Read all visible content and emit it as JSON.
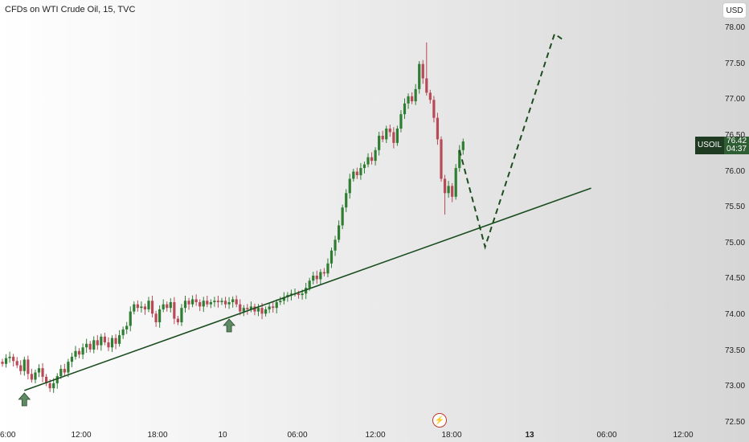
{
  "header": {
    "title": "CFDs on WTI Crude Oil, 15, TVC",
    "currency_button": "USD"
  },
  "price_badge": {
    "symbol": "USOIL",
    "price": "76.42",
    "countdown": "04:37",
    "color": "#2f5e34"
  },
  "colors": {
    "up": "#2e7d32",
    "down": "#b84a58",
    "trendline": "#1b4d1f",
    "projection": "#1b4d1f",
    "arrow": "#5d8a63"
  },
  "icons": {
    "marker": "up-arrow-icon",
    "event": "lightning-icon"
  },
  "chart_data": {
    "type": "candlestick",
    "symbol": "USOIL",
    "y_axis": {
      "ticks": [
        "78.00",
        "77.50",
        "77.00",
        "76.50",
        "76.00",
        "75.50",
        "75.00",
        "74.50",
        "74.00",
        "73.50",
        "73.00",
        "72.50"
      ],
      "range": [
        72.5,
        78.0
      ]
    },
    "x_axis": {
      "ticks": [
        {
          "label": "6:00",
          "bold": false
        },
        {
          "label": "12:00",
          "bold": false
        },
        {
          "label": "18:00",
          "bold": false
        },
        {
          "label": "10",
          "bold": false
        },
        {
          "label": "06:00",
          "bold": false
        },
        {
          "label": "12:00",
          "bold": false
        },
        {
          "label": "18:00",
          "bold": false
        },
        {
          "label": "13",
          "bold": true
        },
        {
          "label": "06:00",
          "bold": false
        },
        {
          "label": "12:00",
          "bold": false
        }
      ]
    },
    "candle_series": {
      "start_close": 73.35,
      "closes": [
        73.32,
        73.4,
        73.42,
        73.36,
        73.3,
        73.22,
        73.38,
        73.18,
        73.1,
        73.2,
        73.26,
        73.14,
        73.05,
        72.98,
        73.05,
        73.15,
        73.25,
        73.2,
        73.35,
        73.42,
        73.5,
        73.45,
        73.55,
        73.6,
        73.52,
        73.65,
        73.58,
        73.7,
        73.62,
        73.55,
        73.68,
        73.6,
        73.72,
        73.8,
        73.85,
        74.05,
        74.15,
        74.1,
        74.12,
        74.08,
        74.2,
        74.02,
        73.9,
        74.08,
        74.15,
        74.1,
        74.18,
        73.95,
        73.9,
        74.1,
        74.2,
        74.15,
        74.22,
        74.18,
        74.12,
        74.2,
        74.15,
        74.18,
        74.2,
        74.18,
        74.2,
        74.15,
        74.18,
        74.22,
        74.15,
        74.05,
        74.1,
        74.08,
        74.12,
        74.05,
        74.1,
        74.02,
        74.08,
        74.12,
        74.1,
        74.18,
        74.2,
        74.25,
        74.28,
        74.3,
        74.3,
        74.28,
        74.3,
        74.38,
        74.48,
        74.55,
        74.5,
        74.6,
        74.58,
        74.72,
        74.9,
        75.05,
        75.25,
        75.5,
        75.7,
        75.9,
        76.0,
        75.95,
        76.05,
        76.1,
        76.2,
        76.15,
        76.3,
        76.5,
        76.45,
        76.6,
        76.55,
        76.4,
        76.6,
        76.8,
        76.95,
        77.05,
        76.98,
        77.15,
        77.5,
        77.3,
        77.1,
        77.0,
        76.75,
        76.45,
        75.9,
        75.7,
        75.8,
        75.65,
        76.05,
        76.3,
        76.42
      ],
      "wick_spikes": [
        {
          "index": 116,
          "high": 77.8
        },
        {
          "index": 121,
          "low": 75.4
        }
      ]
    },
    "trendline": {
      "from": {
        "bar": 6,
        "price": 72.95
      },
      "to": {
        "bar": 161,
        "price": 75.77
      }
    },
    "projection_path": [
      {
        "bar": 125,
        "price": 76.3
      },
      {
        "bar": 132,
        "price": 74.95
      },
      {
        "bar": 151,
        "price": 77.92
      },
      {
        "bar": 153,
        "price": 77.85
      }
    ],
    "markers": [
      {
        "type": "up-arrow",
        "bar": 6
      },
      {
        "type": "up-arrow",
        "bar": 62
      }
    ]
  }
}
